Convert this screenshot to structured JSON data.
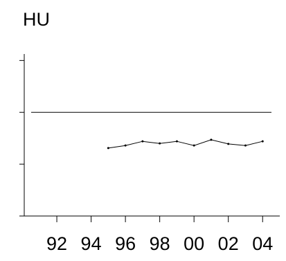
{
  "chart_data": {
    "type": "line",
    "ylabel": "HU",
    "xlabel": "",
    "title": "",
    "x_ticks": [
      1992,
      1994,
      1996,
      1998,
      2000,
      2002,
      2004
    ],
    "x_tick_labels": [
      "92",
      "94",
      "96",
      "98",
      "00",
      "02",
      "04"
    ],
    "xlim": [
      1990.1,
      2005
    ],
    "ylim": [
      0,
      3.125
    ],
    "y_ticks": [
      0,
      1,
      2,
      3
    ],
    "y_tick_labels": [
      "",
      "",
      "",
      ""
    ],
    "reference_line": 2,
    "series": [
      {
        "x": [
          1995,
          1996,
          1997,
          1998,
          1999,
          2000,
          2001,
          2002,
          2003,
          2004
        ],
        "values": [
          1.31,
          1.36,
          1.44,
          1.4,
          1.44,
          1.36,
          1.47,
          1.39,
          1.36,
          1.44
        ]
      }
    ],
    "grid": false,
    "legend": "none"
  }
}
